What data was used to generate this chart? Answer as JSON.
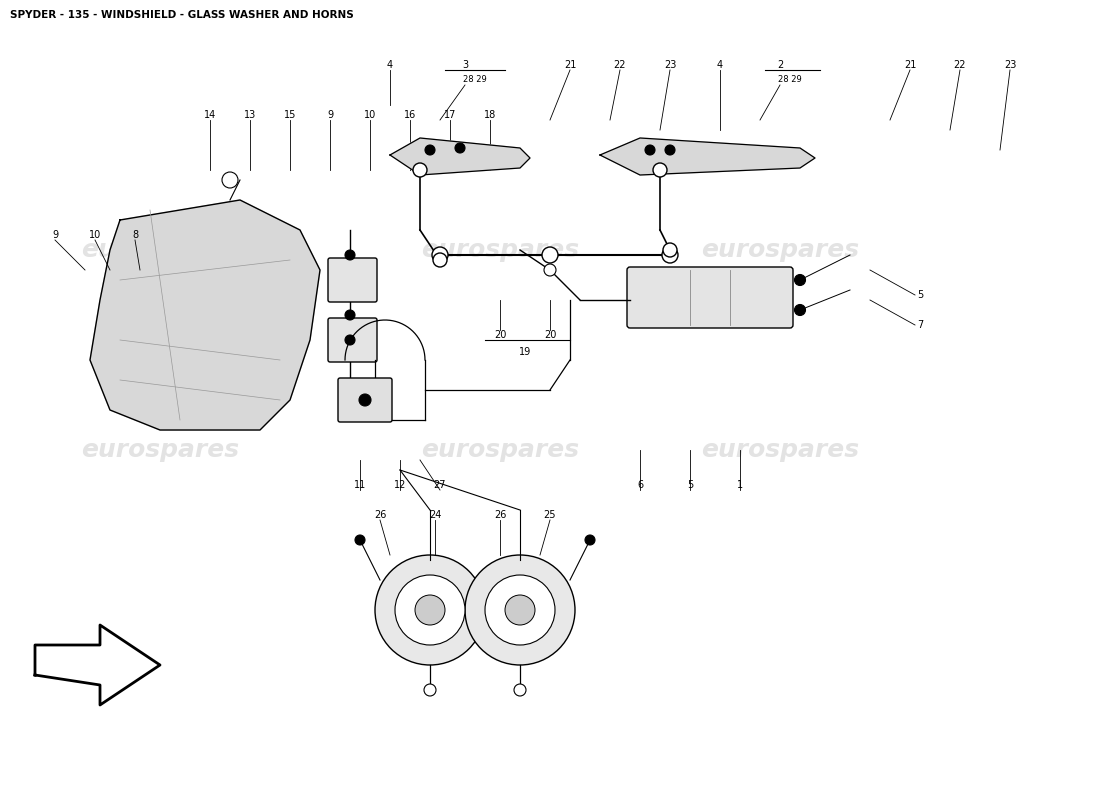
{
  "title": "SPYDER - 135 - WINDSHIELD - GLASS WASHER AND HORNS",
  "bg": "#ffffff",
  "wm": "eurospares",
  "wm_color": "#cccccc",
  "fs": 7.0,
  "fig_w": 11.0,
  "fig_h": 8.0
}
